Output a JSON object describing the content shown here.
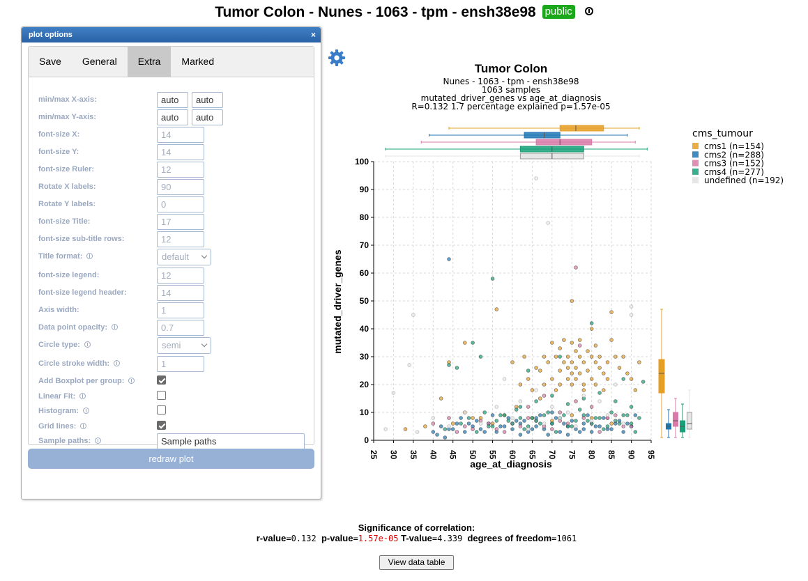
{
  "page": {
    "title": "Tumor Colon - Nunes - 1063 - tpm - ensh38e98",
    "badge": "public",
    "info_icon": "info-icon"
  },
  "dialog": {
    "title": "plot options",
    "close": "×",
    "tabs": [
      "Save",
      "General",
      "Extra",
      "Marked"
    ],
    "active_tab": "Extra",
    "options": [
      {
        "label": "min/max X-axis:",
        "kind": "pair",
        "values": [
          "auto",
          "auto"
        ]
      },
      {
        "label": "min/max Y-axis:",
        "kind": "pair",
        "values": [
          "auto",
          "auto"
        ]
      },
      {
        "label": "font-size X:",
        "kind": "text",
        "value": "14"
      },
      {
        "label": "font-size Y:",
        "kind": "text",
        "value": "14"
      },
      {
        "label": "font-size Ruler:",
        "kind": "text",
        "value": "12"
      },
      {
        "label": "Rotate X labels:",
        "kind": "text",
        "value": "90"
      },
      {
        "label": "Rotate Y labels:",
        "kind": "text",
        "value": "0"
      },
      {
        "label": "font-size Title:",
        "kind": "text",
        "value": "17"
      },
      {
        "label": "font-size sub-title rows:",
        "kind": "text",
        "value": "12"
      },
      {
        "label": "Title format:",
        "kind": "select",
        "value": "default",
        "info": true
      },
      {
        "label": "font-size legend:",
        "kind": "text",
        "value": "12"
      },
      {
        "label": "font-size legend header:",
        "kind": "text",
        "value": "14"
      },
      {
        "label": "Axis width:",
        "kind": "text",
        "value": "1"
      },
      {
        "label": "Data point opacity:",
        "kind": "text",
        "value": "0.7",
        "info": true
      },
      {
        "label": "Circle type:",
        "kind": "select",
        "value": "semi",
        "info": true
      },
      {
        "label": "Circle stroke width:",
        "kind": "text",
        "value": "1",
        "info": true
      },
      {
        "label": "Add Boxplot per group:",
        "kind": "checkbox",
        "checked": true,
        "info": true
      },
      {
        "label": "Linear Fit:",
        "kind": "checkbox",
        "checked": false,
        "info": true
      },
      {
        "label": "Histogram:",
        "kind": "checkbox",
        "checked": false,
        "info": true
      },
      {
        "label": "Grid lines:",
        "kind": "checkbox",
        "checked": true,
        "info": true
      },
      {
        "label": "Sample paths:",
        "kind": "wide",
        "value": "Sample paths",
        "info": true
      }
    ],
    "redraw_label": "redraw plot"
  },
  "colors": {
    "cms1": "#e69f25",
    "cms2": "#1f77b4",
    "cms3": "#d97aa8",
    "cms4": "#18a079",
    "undefined": "#e6e6e6",
    "header": "#2a62a6",
    "badge": "#1aa81a",
    "pvalue": "#d40000"
  },
  "chart_data": {
    "type": "scatter",
    "title": "Tumor Colon",
    "subtitle": [
      "Nunes - 1063 - tpm - ensh38e98",
      "1063 samples",
      "mutated_driver_genes vs age_at_diagnosis",
      "R=0.132 1.7 percentage explained p=1.57e-05"
    ],
    "xlabel": "age_at_diagnosis",
    "ylabel": "mutated_driver_genes",
    "xlim": [
      25,
      95
    ],
    "ylim": [
      0,
      100
    ],
    "xticks": [
      25,
      30,
      35,
      40,
      45,
      50,
      55,
      60,
      65,
      70,
      75,
      80,
      85,
      90,
      95
    ],
    "yticks": [
      0,
      10,
      20,
      30,
      40,
      50,
      60,
      70,
      80,
      90,
      100
    ],
    "grid": true,
    "legend": {
      "title": "cms_tumour",
      "position": "top-right",
      "entries": [
        "cms1 (n=154)",
        "cms2 (n=288)",
        "cms3 (n=152)",
        "cms4 (n=277)",
        "undefined (n=192)"
      ]
    },
    "series": [
      {
        "name": "cms1 (n=154)",
        "key": "cms1",
        "x": [
          42,
          44,
          48,
          56,
          60,
          62,
          63,
          64,
          65,
          66,
          67,
          67,
          68,
          68,
          69,
          70,
          70,
          71,
          71,
          72,
          72,
          72,
          73,
          73,
          74,
          74,
          74,
          75,
          75,
          75,
          75,
          75,
          76,
          76,
          76,
          77,
          77,
          77,
          78,
          78,
          78,
          79,
          79,
          80,
          80,
          80,
          81,
          81,
          81,
          82,
          82,
          83,
          83,
          84,
          84,
          85,
          85,
          86,
          87,
          88,
          89,
          90,
          91,
          92,
          48,
          52,
          55,
          58,
          61,
          65,
          70,
          75,
          80,
          85,
          33,
          38,
          45,
          50
        ],
        "y": [
          15,
          28,
          35,
          47,
          28,
          20,
          30,
          22,
          18,
          26,
          25,
          15,
          30,
          20,
          28,
          35,
          22,
          18,
          30,
          25,
          33,
          20,
          36,
          28,
          22,
          30,
          26,
          35,
          28,
          24,
          20,
          50,
          32,
          26,
          22,
          30,
          36,
          24,
          28,
          20,
          18,
          25,
          32,
          22,
          30,
          40,
          28,
          20,
          34,
          26,
          30,
          24,
          18,
          28,
          22,
          46,
          36,
          30,
          26,
          30,
          24,
          22,
          18,
          28,
          10,
          8,
          6,
          9,
          12,
          8,
          7,
          9,
          8,
          6,
          4,
          5,
          6,
          8
        ]
      },
      {
        "name": "cms2 (n=288)",
        "key": "cms2",
        "x": [
          44,
          40,
          42,
          44,
          46,
          48,
          50,
          52,
          54,
          56,
          58,
          60,
          62,
          64,
          66,
          68,
          70,
          72,
          74,
          76,
          78,
          80,
          82,
          84,
          86,
          88,
          90,
          41,
          45,
          49,
          53,
          57,
          61,
          65,
          69,
          73,
          77,
          81,
          85,
          89,
          47,
          51,
          55,
          59,
          63,
          67,
          71,
          75,
          79,
          83,
          87,
          91,
          43,
          62,
          66,
          70,
          74,
          78
        ],
        "y": [
          65,
          3,
          5,
          4,
          6,
          3,
          5,
          4,
          6,
          3,
          5,
          4,
          6,
          3,
          5,
          4,
          6,
          3,
          5,
          4,
          6,
          3,
          5,
          4,
          6,
          3,
          5,
          2,
          4,
          6,
          3,
          5,
          7,
          4,
          2,
          6,
          3,
          5,
          4,
          6,
          8,
          7,
          9,
          8,
          7,
          9,
          8,
          7,
          9,
          8,
          7,
          9,
          1,
          2,
          8,
          10,
          2,
          4
        ]
      },
      {
        "name": "cms3 (n=152)",
        "key": "cms3",
        "x": [
          40,
          44,
          48,
          52,
          56,
          60,
          64,
          68,
          72,
          76,
          80,
          84,
          88,
          46,
          50,
          54,
          58,
          62,
          66,
          70,
          74,
          78,
          82,
          86,
          90,
          77,
          64,
          68,
          72,
          76,
          80,
          84
        ],
        "y": [
          6,
          8,
          5,
          7,
          4,
          6,
          8,
          5,
          7,
          62,
          6,
          8,
          5,
          3,
          4,
          6,
          3,
          5,
          7,
          4,
          6,
          8,
          3,
          9,
          5,
          34,
          12,
          16,
          10,
          14,
          12,
          8
        ]
      },
      {
        "name": "cms4 (n=277)",
        "key": "cms4",
        "x": [
          55,
          44,
          46,
          50,
          52,
          54,
          56,
          58,
          60,
          62,
          64,
          66,
          68,
          70,
          72,
          74,
          76,
          78,
          80,
          82,
          84,
          86,
          88,
          90,
          92,
          43,
          47,
          51,
          55,
          59,
          63,
          67,
          71,
          75,
          79,
          83,
          87,
          91,
          49,
          53,
          57,
          61,
          65,
          69,
          73,
          77,
          81,
          85,
          89,
          93,
          62,
          66,
          70,
          74,
          78,
          82,
          86,
          90,
          64,
          72,
          80,
          88
        ],
        "y": [
          58,
          27,
          26,
          35,
          30,
          5,
          7,
          9,
          6,
          8,
          5,
          7,
          9,
          6,
          8,
          5,
          7,
          9,
          6,
          8,
          5,
          7,
          9,
          6,
          8,
          4,
          6,
          3,
          5,
          7,
          4,
          6,
          3,
          5,
          7,
          4,
          6,
          3,
          8,
          10,
          9,
          11,
          8,
          10,
          9,
          11,
          8,
          10,
          9,
          21,
          12,
          14,
          16,
          13,
          15,
          17,
          14,
          12,
          25,
          30,
          42,
          22
        ]
      },
      {
        "name": "undefined (n=192)",
        "key": "undefined",
        "x": [
          28,
          30,
          35,
          34,
          66,
          69,
          44,
          52,
          60,
          64,
          68,
          72,
          76,
          80,
          84,
          88,
          90,
          58,
          62,
          66,
          70,
          74,
          78,
          82,
          86,
          48,
          56,
          36,
          40,
          90
        ],
        "y": [
          4,
          17,
          45,
          27,
          94,
          78,
          5,
          6,
          8,
          4,
          6,
          8,
          5,
          7,
          9,
          6,
          48,
          22,
          14,
          18,
          12,
          10,
          16,
          14,
          20,
          10,
          12,
          3,
          8,
          45
        ]
      }
    ],
    "boxplots_x": [
      {
        "key": "cms1",
        "min": 44,
        "q1": 72,
        "median": 76,
        "q3": 83,
        "max": 92
      },
      {
        "key": "cms2",
        "min": 39,
        "q1": 63,
        "median": 68,
        "q3": 72,
        "max": 89
      },
      {
        "key": "cms3",
        "min": 37,
        "q1": 66,
        "median": 72,
        "q3": 80,
        "max": 91
      },
      {
        "key": "cms4",
        "min": 28,
        "q1": 62,
        "median": 70,
        "q3": 78,
        "max": 94
      },
      {
        "key": "undefined",
        "min": 28,
        "q1": 62,
        "median": 70,
        "q3": 78,
        "max": 92
      }
    ],
    "boxplots_y": [
      {
        "key": "cms1",
        "min": 1,
        "q1": 17,
        "median": 24,
        "q3": 29,
        "max": 47
      },
      {
        "key": "cms2",
        "min": 1,
        "q1": 4,
        "median": 5,
        "q3": 6,
        "max": 11
      },
      {
        "key": "cms3",
        "min": 1,
        "q1": 5,
        "median": 7,
        "q3": 10,
        "max": 15
      },
      {
        "key": "cms4",
        "min": 1,
        "q1": 3,
        "median": 5,
        "q3": 7,
        "max": 13
      },
      {
        "key": "undefined",
        "min": 1,
        "q1": 4,
        "median": 6,
        "q3": 10,
        "max": 18
      }
    ]
  },
  "significance": {
    "heading": "Significance of correlation:",
    "r_label": "r-value",
    "r_value": "=0.132 ",
    "p_label": "p-value",
    "p_value": "1.57e-05",
    "t_label": "T-value",
    "t_value": "=4.339 ",
    "df_label": "degrees of freedom",
    "df_value": "=1061"
  },
  "view_button": "View data table"
}
